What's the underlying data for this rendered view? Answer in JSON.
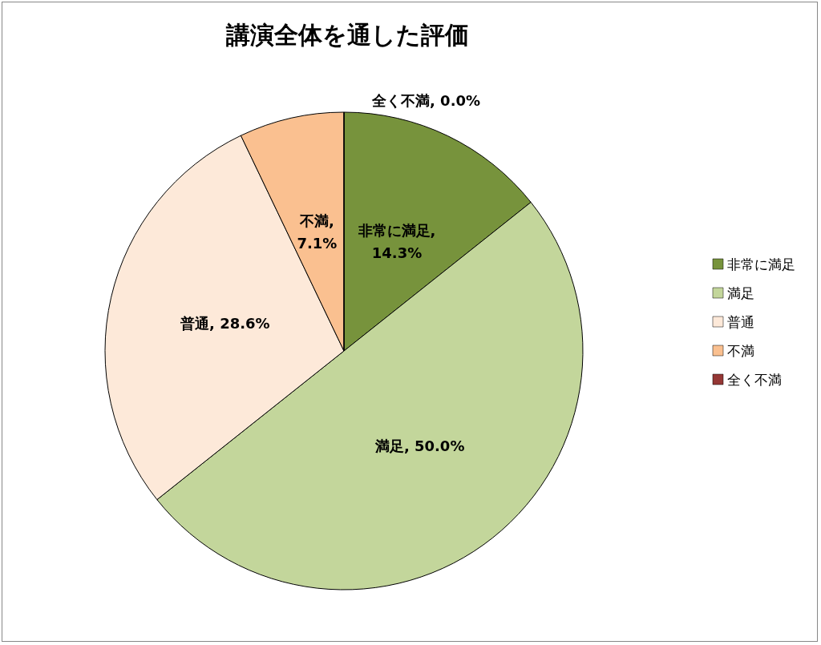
{
  "chart_data": {
    "type": "pie",
    "title": "講演全体を通した評価",
    "categories": [
      "非常に満足",
      "満足",
      "普通",
      "不満",
      "全く不満"
    ],
    "values": [
      14.3,
      50.0,
      28.6,
      7.1,
      0.0
    ],
    "value_labels": [
      "非常に満足, 14.3%",
      "満足, 50.0%",
      "普通, 28.6%",
      "不満, 7.1%",
      "全く不満, 0.0%"
    ],
    "colors": [
      "#77933c",
      "#c3d69b",
      "#fde9d9",
      "#fac090",
      "#953735"
    ],
    "legend": "right"
  }
}
